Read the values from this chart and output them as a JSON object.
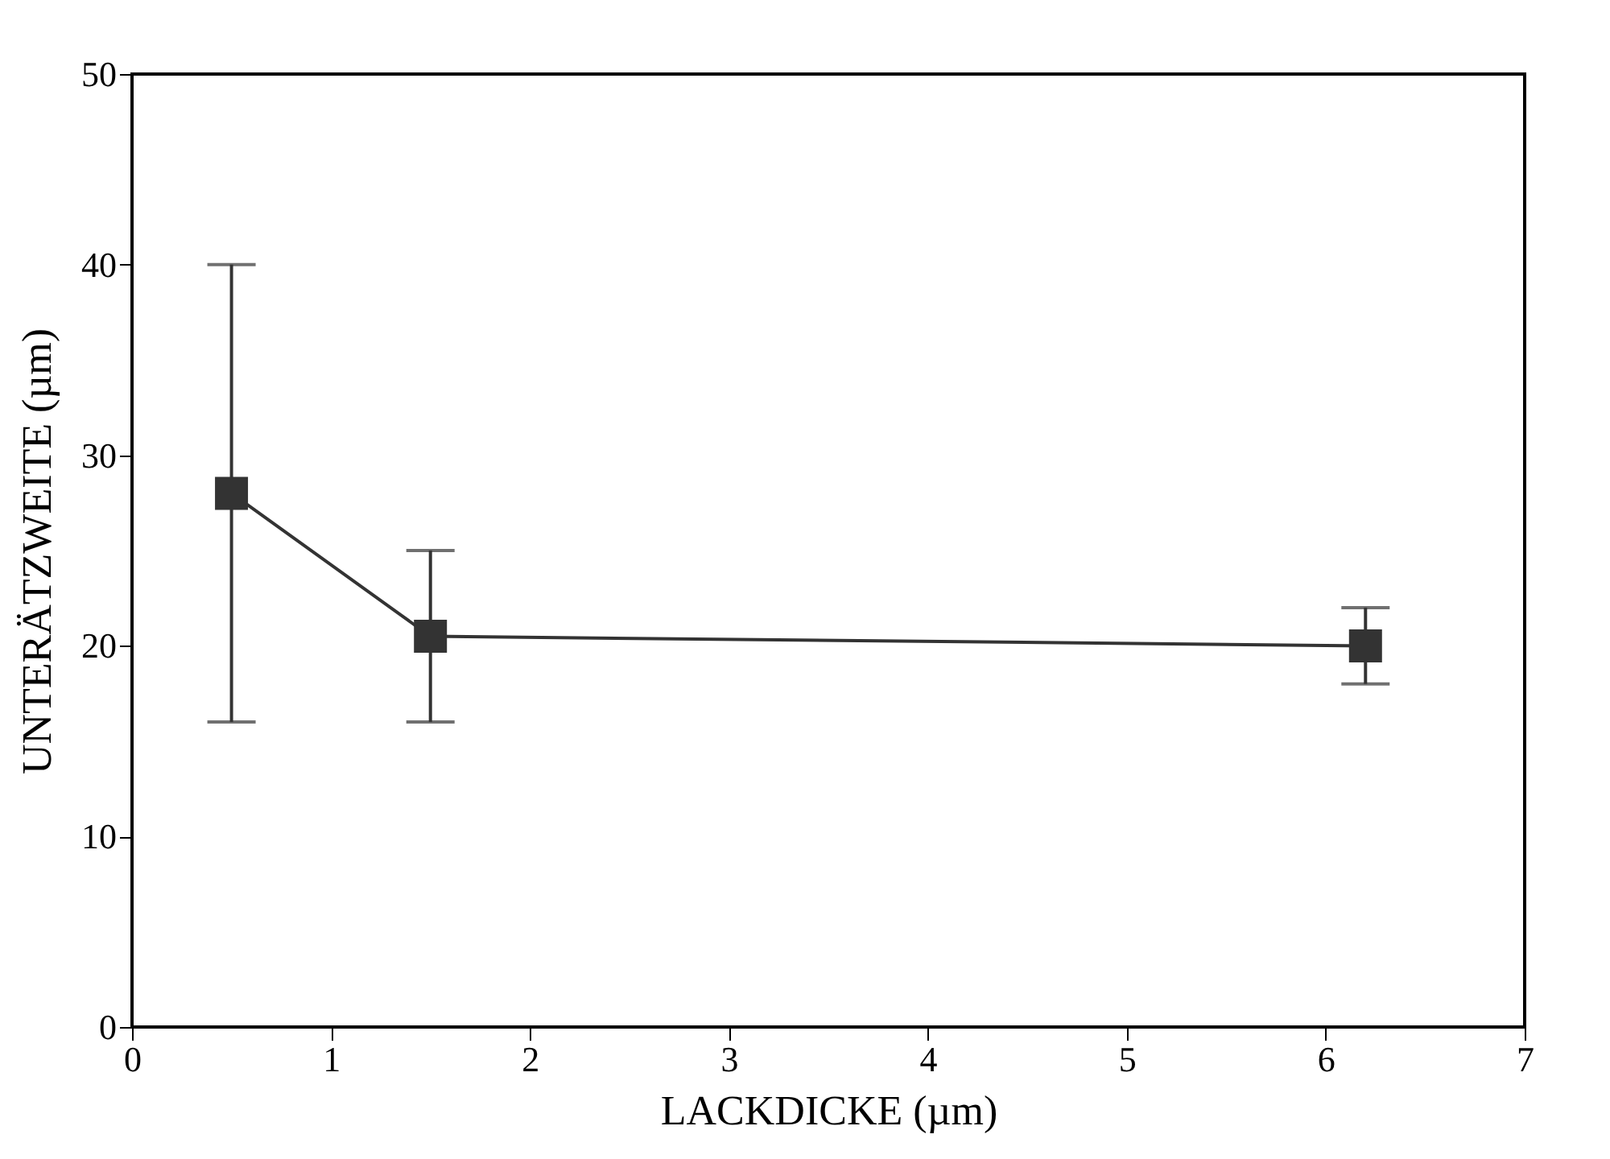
{
  "chart_data": {
    "type": "line",
    "xlabel": "LACKDICKE  (µm)",
    "ylabel": "UNTERÄTZWEITE  (µm)",
    "x": [
      0.5,
      1.5,
      6.2
    ],
    "series": [
      {
        "color": "#333333",
        "values": [
          28,
          20.5,
          20
        ],
        "errors": [
          [
            16,
            40
          ],
          [
            16,
            25
          ],
          [
            18,
            22
          ]
        ]
      }
    ],
    "xlim": [
      0,
      7
    ],
    "xticks": [
      0,
      1,
      2,
      3,
      4,
      5,
      6,
      7
    ],
    "ylim": [
      0,
      50
    ],
    "yticks": [
      0,
      10,
      20,
      30,
      40,
      50
    ],
    "marker": "square",
    "line_style": "solid",
    "grid": false
  }
}
